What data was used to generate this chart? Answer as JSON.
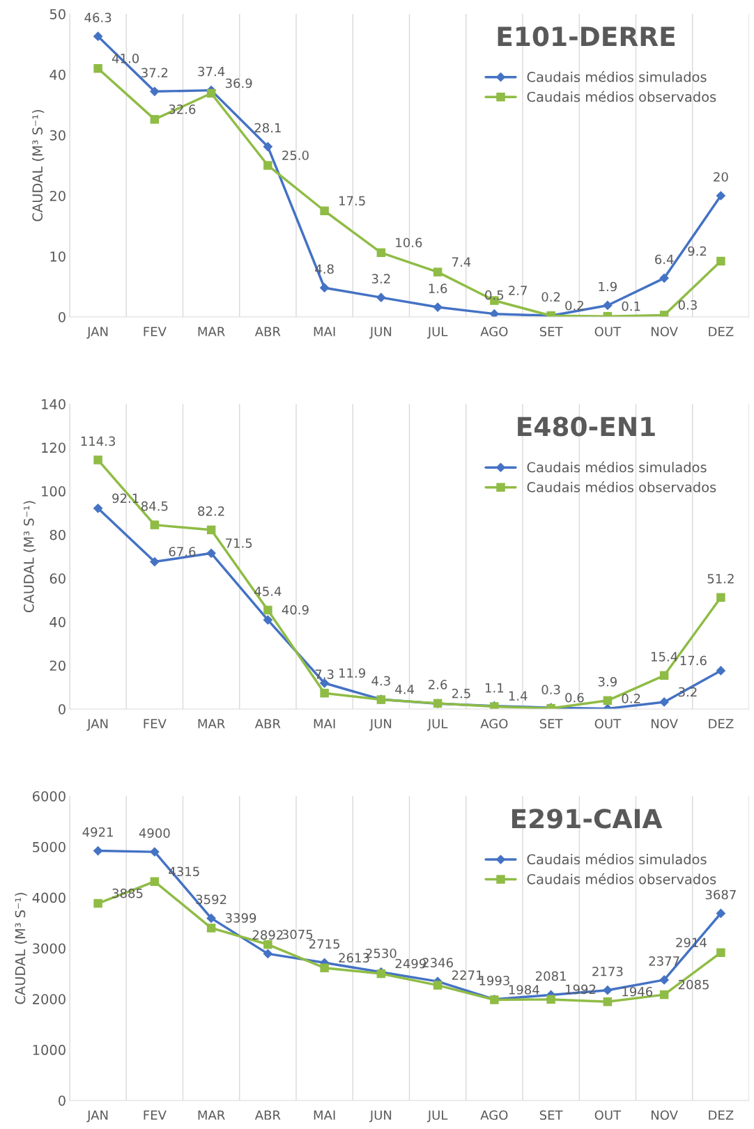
{
  "chart_data": [
    {
      "type": "line",
      "title": "E101-DERRE",
      "ylabel": "CAUDAL (M³ S⁻¹)",
      "categories": [
        "JAN",
        "FEV",
        "MAR",
        "ABR",
        "MAI",
        "JUN",
        "JUL",
        "AGO",
        "SET",
        "OUT",
        "NOV",
        "DEZ"
      ],
      "ylim": [
        0,
        50
      ],
      "yticks": [
        0,
        10,
        20,
        30,
        40,
        50
      ],
      "grid": "x",
      "legend": "top right",
      "series": [
        {
          "name": "Caudais médios simulados",
          "color": "#4472c4",
          "marker": "diamond",
          "values": [
            46.3,
            37.2,
            37.4,
            28.1,
            4.8,
            3.2,
            1.6,
            0.5,
            0.2,
            1.9,
            6.4,
            20
          ],
          "value_labels": [
            "46.3",
            "37.2",
            "37.4",
            "28.1",
            "4.8",
            "3.2",
            "1.6",
            "0.5",
            "0.2",
            "1.9",
            "6.4",
            "20"
          ]
        },
        {
          "name": "Caudais médios observados",
          "color": "#8fbc45",
          "marker": "square",
          "values": [
            41.0,
            32.6,
            36.9,
            25.0,
            17.5,
            10.6,
            7.4,
            2.7,
            0.2,
            0.1,
            0.3,
            9.2
          ],
          "value_labels": [
            "41.0",
            "32.6",
            "36.9",
            "25.0",
            "17.5",
            "10.6",
            "7.4",
            "2.7",
            "0.2",
            "0.1",
            "0.3",
            "9.2"
          ]
        }
      ]
    },
    {
      "type": "line",
      "title": "E480-EN1",
      "ylabel": "CAUDAL (M³ S⁻¹)",
      "categories": [
        "JAN",
        "FEV",
        "MAR",
        "ABR",
        "MAI",
        "JUN",
        "JUL",
        "AGO",
        "SET",
        "OUT",
        "NOV",
        "DEZ"
      ],
      "ylim": [
        0,
        140
      ],
      "yticks": [
        0,
        20,
        40,
        60,
        80,
        100,
        120,
        140
      ],
      "grid": "x",
      "legend": "top right",
      "series": [
        {
          "name": "Caudais médios simulados",
          "color": "#4472c4",
          "marker": "diamond",
          "values": [
            92.1,
            67.6,
            71.5,
            40.9,
            11.9,
            4.4,
            2.5,
            1.4,
            0.6,
            0.2,
            3.2,
            17.6
          ],
          "value_labels": [
            "92.1",
            "67.6",
            "71.5",
            "40.9",
            "11.9",
            "4.4",
            "2.5",
            "1.4",
            "0.6",
            "0.2",
            "3.2",
            "17.6"
          ]
        },
        {
          "name": "Caudais médios observados",
          "color": "#8fbc45",
          "marker": "square",
          "values": [
            114.3,
            84.5,
            82.2,
            45.4,
            7.3,
            4.3,
            2.6,
            1.1,
            0.3,
            3.9,
            15.4,
            51.2
          ],
          "value_labels": [
            "114.3",
            "84.5",
            "82.2",
            "45.4",
            "7.3",
            "4.3",
            "2.6",
            "1.1",
            "0.3",
            "3.9",
            "15.4",
            "51.2"
          ]
        }
      ]
    },
    {
      "type": "line",
      "title": "E291-CAIA",
      "ylabel": "CAUDAL (M³ S⁻¹)",
      "categories": [
        "JAN",
        "FEV",
        "MAR",
        "ABR",
        "MAI",
        "JUN",
        "JUL",
        "AGO",
        "SET",
        "OUT",
        "NOV",
        "DEZ"
      ],
      "ylim": [
        0,
        6000
      ],
      "yticks": [
        0,
        1000,
        2000,
        3000,
        4000,
        5000,
        6000
      ],
      "grid": "x",
      "legend": "top right",
      "series": [
        {
          "name": "Caudais médios simulados",
          "color": "#4472c4",
          "marker": "diamond",
          "values": [
            4921,
            4900,
            3592,
            2892,
            2715,
            2530,
            2346,
            1993,
            2081,
            2173,
            2377,
            3687
          ],
          "value_labels": [
            "4921",
            "4900",
            "3592",
            "2892",
            "2715",
            "2530",
            "2346",
            "1993",
            "2081",
            "2173",
            "2377",
            "3687"
          ]
        },
        {
          "name": "Caudais médios observados",
          "color": "#8fbc45",
          "marker": "square",
          "values": [
            3885,
            4315,
            3399,
            3075,
            2613,
            2499,
            2271,
            1984,
            1992,
            1946,
            2085,
            2914
          ],
          "value_labels": [
            "3885",
            "4315",
            "3399",
            "3075",
            "2613",
            "2499",
            "2271",
            "1984",
            "1992",
            "1946",
            "2085",
            "2914"
          ]
        }
      ]
    }
  ]
}
